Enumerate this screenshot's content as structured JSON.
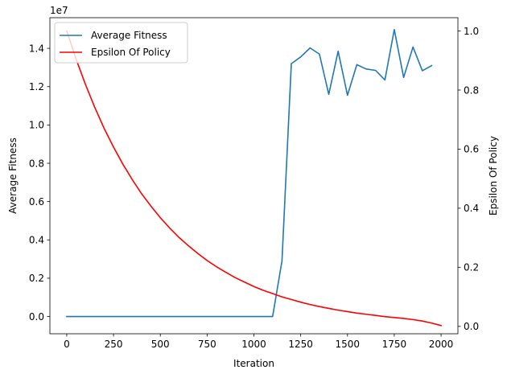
{
  "chart_data": {
    "type": "line",
    "title": "",
    "xlabel": "Iteration",
    "ylabel": "Average Fitness",
    "ylabel_right": "Epsilon Of Policy",
    "y_offset_label": "1e7",
    "xlim": [
      -90,
      2090
    ],
    "ylim": [
      -900000,
      15600000
    ],
    "ylim_right": [
      -0.025,
      1.045
    ],
    "x_ticks": [
      0,
      250,
      500,
      750,
      1000,
      1250,
      1500,
      1750,
      2000
    ],
    "y_ticks": [
      0,
      2000000,
      4000000,
      6000000,
      8000000,
      10000000,
      12000000,
      14000000
    ],
    "y_tick_labels": [
      "0.0",
      "0.2",
      "0.4",
      "0.6",
      "0.8",
      "1.0",
      "1.2",
      "1.4"
    ],
    "y_right_ticks": [
      0,
      0.2,
      0.4,
      0.6,
      0.8,
      1.0
    ],
    "y_right_tick_labels": [
      "0.0",
      "0.2",
      "0.4",
      "0.6",
      "0.8",
      "1.0"
    ],
    "grid": false,
    "legend_position": "top-left",
    "series": [
      {
        "name": "Average Fitness",
        "axis": "left",
        "color": "#1f77b4",
        "x": [
          0,
          50,
          100,
          150,
          200,
          250,
          300,
          350,
          400,
          450,
          500,
          550,
          600,
          650,
          700,
          750,
          800,
          850,
          900,
          950,
          1000,
          1050,
          1100,
          1150,
          1200,
          1250,
          1300,
          1350,
          1400,
          1450,
          1500,
          1550,
          1600,
          1650,
          1700,
          1750,
          1800,
          1850,
          1900,
          1950
        ],
        "y": [
          0,
          0,
          0,
          0,
          0,
          0,
          0,
          0,
          0,
          0,
          0,
          0,
          0,
          0,
          0,
          0,
          0,
          0,
          0,
          0,
          0,
          0,
          0,
          2900000,
          13200000,
          13550000,
          14020000,
          13700000,
          11600000,
          13850000,
          11550000,
          13150000,
          12920000,
          12850000,
          12350000,
          14980000,
          12480000,
          14070000,
          12830000,
          13100000
        ]
      },
      {
        "name": "Epsilon Of Policy",
        "axis": "right",
        "color": "#ff0000",
        "x": [
          0,
          50,
          100,
          150,
          200,
          250,
          300,
          350,
          400,
          450,
          500,
          550,
          600,
          650,
          700,
          750,
          800,
          850,
          900,
          950,
          1000,
          1050,
          1100,
          1150,
          1200,
          1250,
          1300,
          1350,
          1400,
          1450,
          1500,
          1550,
          1600,
          1650,
          1700,
          1750,
          1800,
          1850,
          1900,
          1950,
          2000
        ],
        "y": [
          1.0,
          0.905,
          0.819,
          0.741,
          0.67,
          0.607,
          0.549,
          0.497,
          0.449,
          0.407,
          0.368,
          0.333,
          0.301,
          0.273,
          0.247,
          0.223,
          0.202,
          0.183,
          0.165,
          0.15,
          0.135,
          0.122,
          0.111,
          0.1,
          0.091,
          0.082,
          0.074,
          0.067,
          0.061,
          0.055,
          0.05,
          0.045,
          0.041,
          0.037,
          0.033,
          0.03,
          0.027,
          0.023,
          0.018,
          0.011,
          0.003
        ]
      }
    ]
  }
}
